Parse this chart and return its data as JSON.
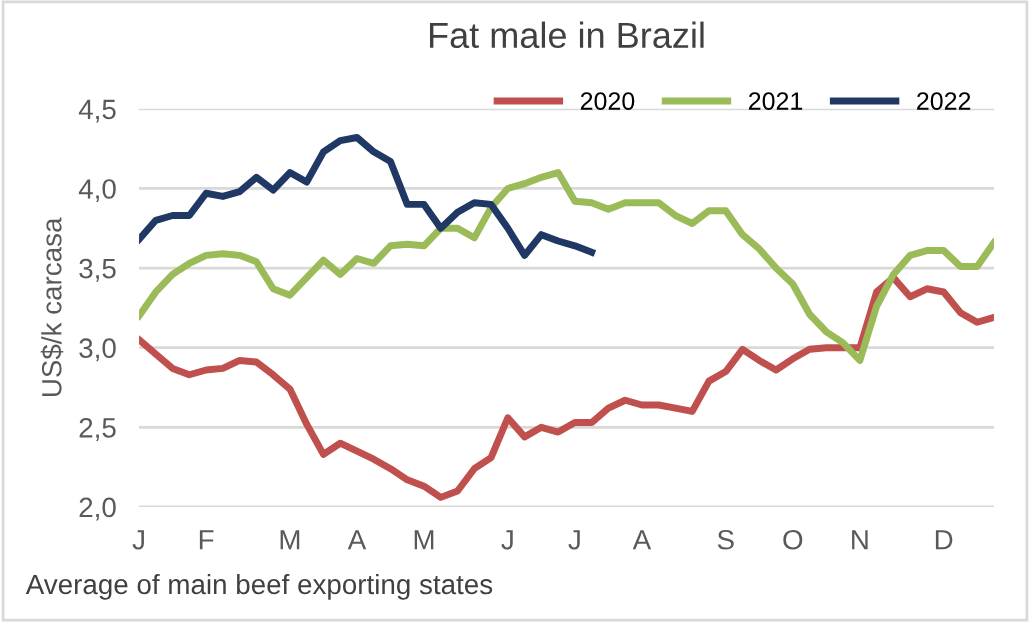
{
  "chart_data": {
    "type": "line",
    "title": "Fat male in Brazil",
    "ylabel": "US$/k carcasa",
    "annotations": [
      "Average of main beef exporting states"
    ],
    "categories": [
      "J",
      null,
      null,
      null,
      "F",
      null,
      null,
      null,
      null,
      "M",
      null,
      null,
      null,
      "A",
      null,
      null,
      null,
      "M",
      null,
      null,
      null,
      null,
      "J",
      null,
      null,
      null,
      "J",
      null,
      null,
      null,
      "A",
      null,
      null,
      null,
      null,
      "S",
      null,
      null,
      null,
      "O",
      null,
      null,
      null,
      "N",
      null,
      null,
      null,
      null,
      "D",
      null,
      null,
      null
    ],
    "ylim": [
      2.0,
      4.5
    ],
    "yticks": [
      {
        "value": 2.0,
        "label": "2,0"
      },
      {
        "value": 2.5,
        "label": "2,5"
      },
      {
        "value": 3.0,
        "label": "3,0"
      },
      {
        "value": 3.5,
        "label": "3,5"
      },
      {
        "value": 4.0,
        "label": "4,0"
      },
      {
        "value": 4.5,
        "label": "4,5"
      }
    ],
    "grid": "y",
    "legend": "top right",
    "marker": "none",
    "line_style": "solid",
    "series": [
      {
        "name": "2020",
        "color": "#c0504d",
        "values": [
          3.05,
          2.96,
          2.87,
          2.83,
          2.86,
          2.87,
          2.92,
          2.91,
          2.83,
          2.74,
          2.52,
          2.33,
          2.4,
          2.35,
          2.3,
          2.24,
          2.17,
          2.13,
          2.06,
          2.1,
          2.24,
          2.31,
          2.56,
          2.44,
          2.5,
          2.47,
          2.53,
          2.53,
          2.62,
          2.67,
          2.64,
          2.64,
          2.62,
          2.6,
          2.79,
          2.85,
          2.99,
          2.92,
          2.86,
          2.93,
          2.99,
          3.0,
          3.0,
          3.0,
          3.35,
          3.44,
          3.32,
          3.37,
          3.35,
          3.22,
          3.16,
          3.19
        ]
      },
      {
        "name": "2021",
        "color": "#9bbb59",
        "values": [
          3.2,
          3.35,
          3.46,
          3.53,
          3.58,
          3.59,
          3.58,
          3.54,
          3.37,
          3.33,
          3.44,
          3.55,
          3.46,
          3.56,
          3.53,
          3.64,
          3.65,
          3.64,
          3.75,
          3.75,
          3.69,
          3.88,
          4.0,
          4.03,
          4.07,
          4.1,
          3.92,
          3.91,
          3.87,
          3.91,
          3.91,
          3.91,
          3.83,
          3.78,
          3.86,
          3.86,
          3.71,
          3.62,
          3.5,
          3.4,
          3.21,
          3.1,
          3.03,
          2.92,
          3.26,
          3.46,
          3.58,
          3.61,
          3.61,
          3.51,
          3.51,
          3.66
        ]
      },
      {
        "name": "2022",
        "color": "#1f3864",
        "values": [
          3.68,
          3.8,
          3.83,
          3.83,
          3.97,
          3.95,
          3.98,
          4.07,
          3.99,
          4.1,
          4.04,
          4.23,
          4.3,
          4.32,
          4.23,
          4.17,
          3.9,
          3.9,
          3.75,
          3.85,
          3.91,
          3.9,
          3.75,
          3.58,
          3.71,
          3.67,
          3.64,
          3.6,
          null,
          null,
          null,
          null,
          null,
          null,
          null,
          null,
          null,
          null,
          null,
          null,
          null,
          null,
          null,
          null,
          null,
          null,
          null,
          null,
          null,
          null,
          null,
          null
        ]
      }
    ]
  }
}
